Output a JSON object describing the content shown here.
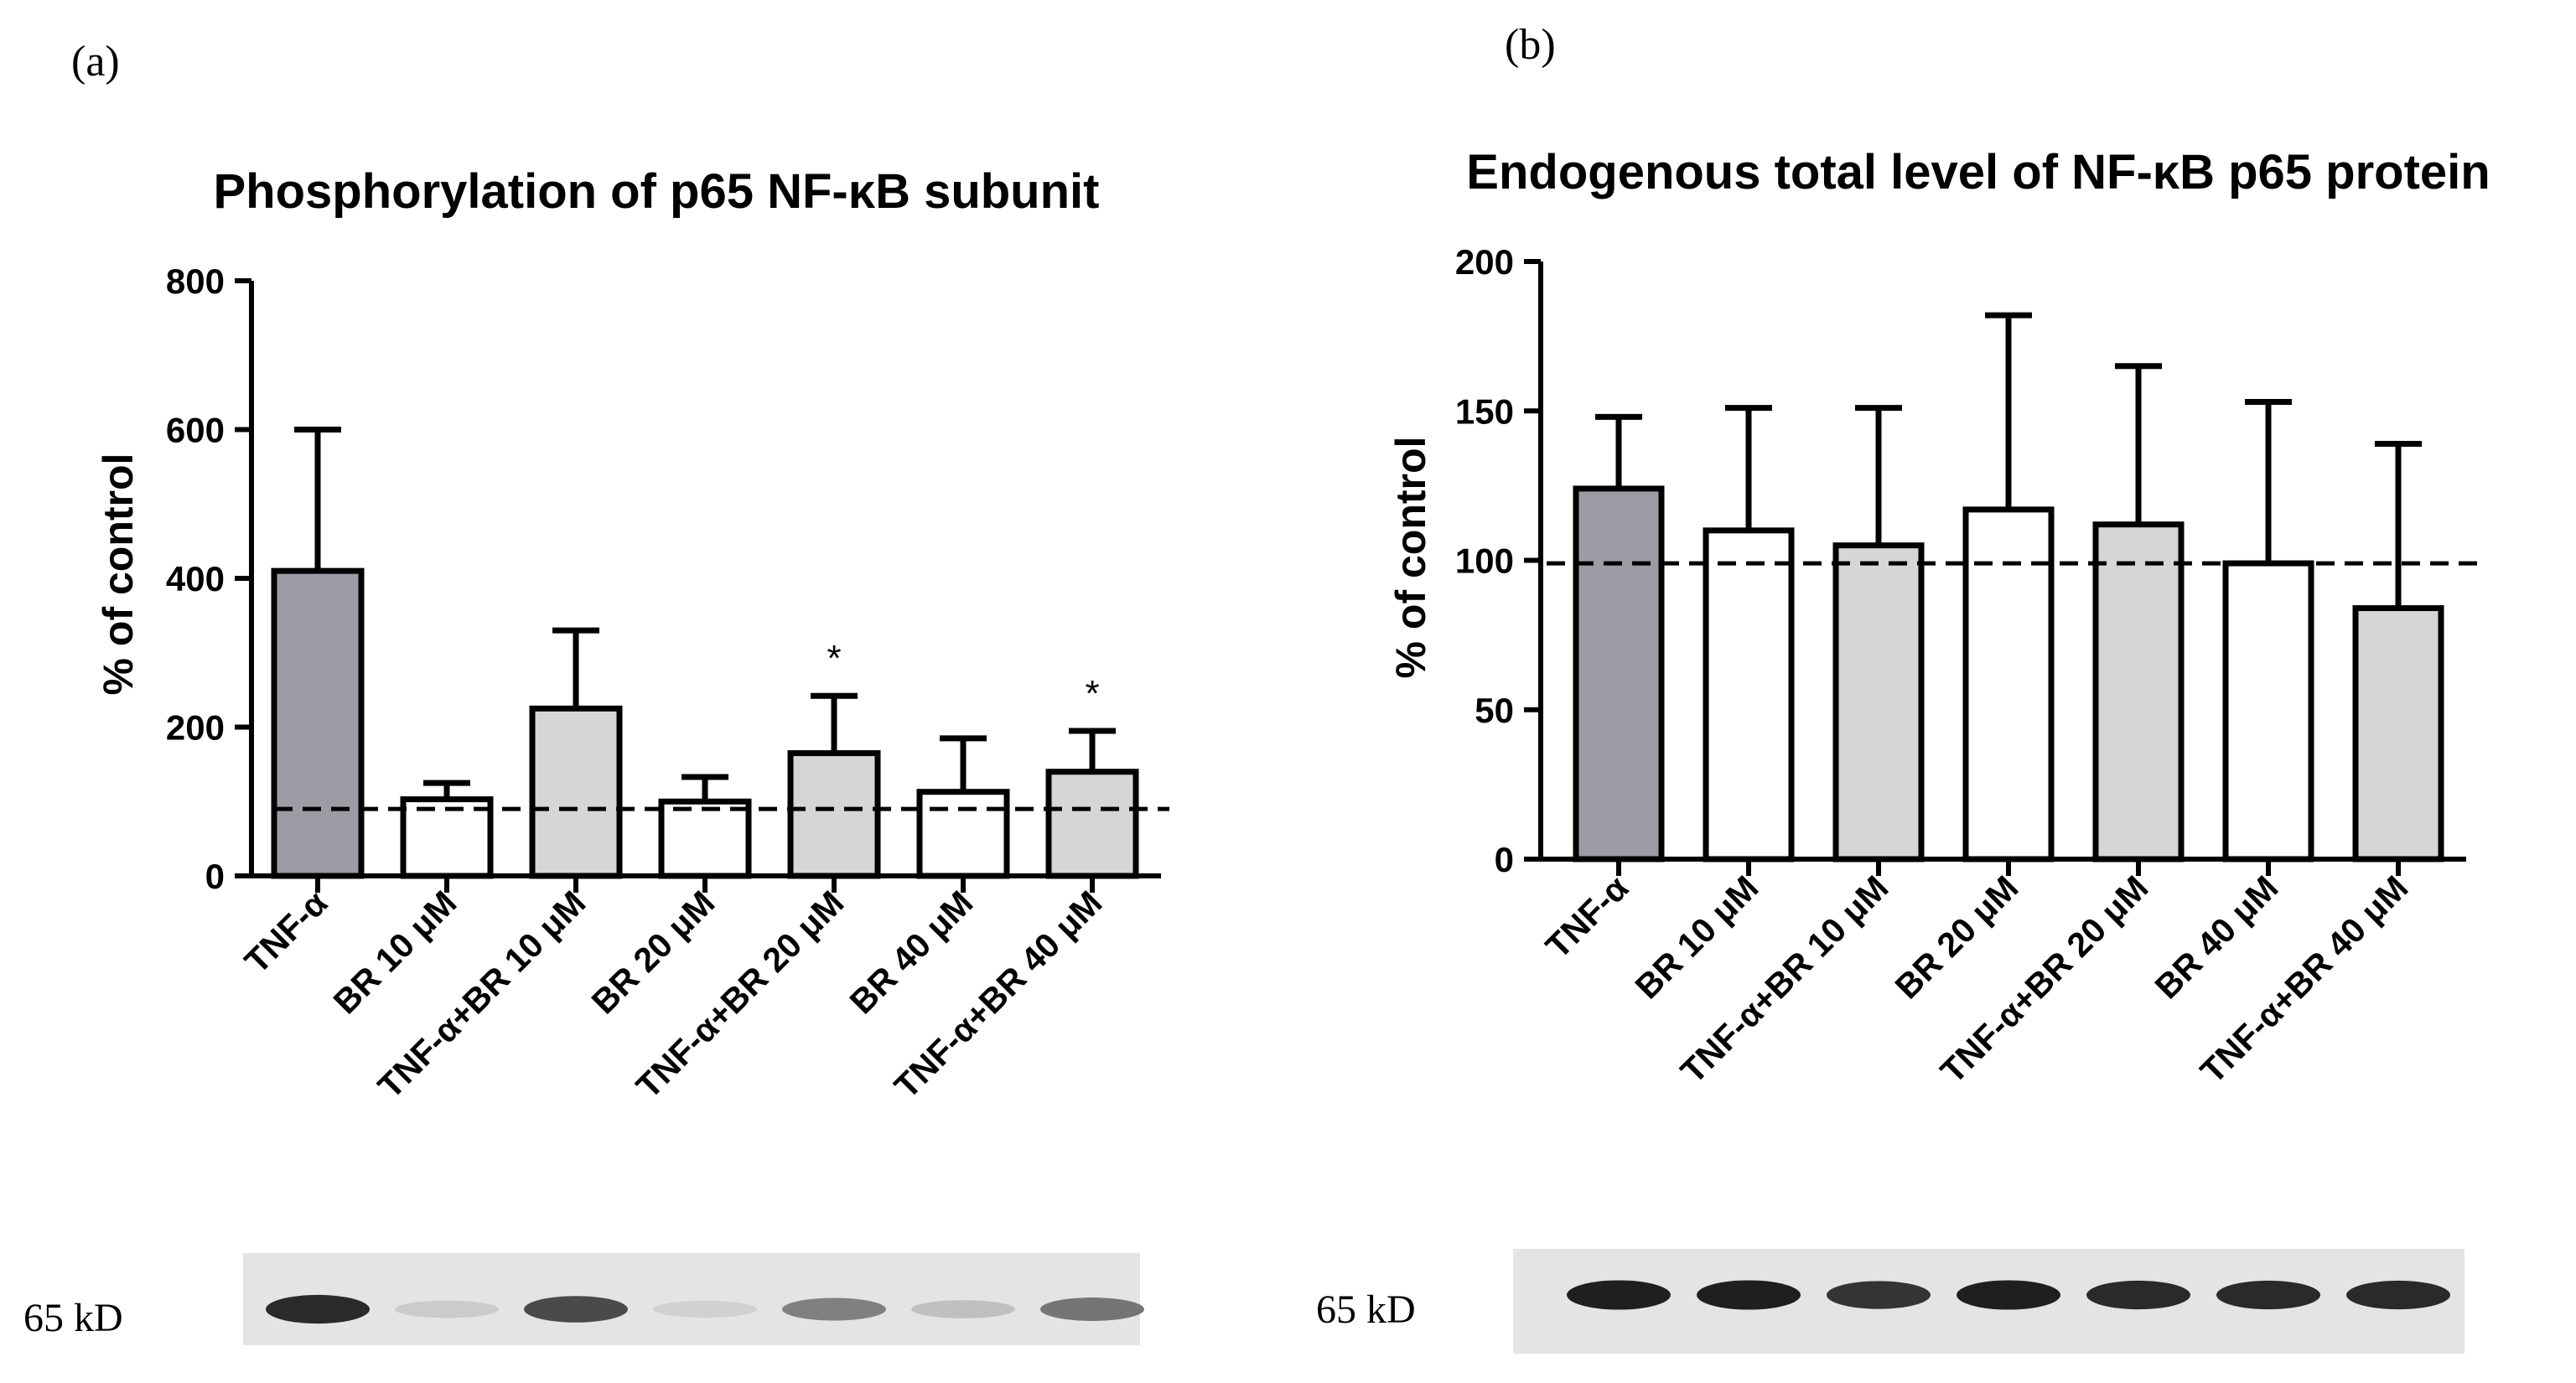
{
  "figure": {
    "panel_a_label": "(a)",
    "panel_b_label": "(b)"
  },
  "chart_data": [
    {
      "type": "bar",
      "panel": "(a)",
      "title": "Phosphorylation of  p65 NF-κB subunit",
      "xlabel": "",
      "ylabel": "% of control",
      "ylim": [
        0,
        800
      ],
      "yticks": [
        0,
        200,
        400,
        600,
        800
      ],
      "categories": [
        "TNF-α",
        "BR 10 μM",
        "TNF-α+BR 10 μM",
        "BR 20 μM",
        "TNF-α+BR 20 μM",
        "BR 40 μM",
        "TNF-α+BR 40 μM"
      ],
      "values": [
        410,
        103,
        225,
        100,
        165,
        113,
        140
      ],
      "errors": [
        190,
        22,
        105,
        33,
        77,
        72,
        55
      ],
      "fills": [
        "#9c9ca4",
        "#ffffff",
        "#d6d6d6",
        "#ffffff",
        "#d6d6d6",
        "#ffffff",
        "#d6d6d6"
      ],
      "significance": [
        "",
        "",
        "",
        "",
        "*",
        "",
        "*"
      ],
      "reference_line": 90,
      "grid": false,
      "blot": {
        "label": "65 kD",
        "band_intensity": [
          0.9,
          0.15,
          0.75,
          0.12,
          0.5,
          0.2,
          0.55
        ]
      }
    },
    {
      "type": "bar",
      "panel": "(b)",
      "title": "Endogenous total level of NF-κB p65 protein",
      "xlabel": "",
      "ylabel": "% of control",
      "ylim": [
        0,
        200
      ],
      "yticks": [
        0,
        50,
        100,
        150,
        200
      ],
      "categories": [
        "TNF-α",
        "BR 10 μM",
        "TNF-α+BR 10 μM",
        "BR 20 μM",
        "TNF-α+BR 20 μM",
        "BR 40 μM",
        "TNF-α+BR 40 μM"
      ],
      "values": [
        124,
        110,
        105,
        117,
        112,
        99,
        84
      ],
      "errors": [
        24,
        41,
        46,
        65,
        53,
        54,
        55
      ],
      "fills": [
        "#9c9ca4",
        "#ffffff",
        "#d6d6d6",
        "#ffffff",
        "#d6d6d6",
        "#ffffff",
        "#d6d6d6"
      ],
      "significance": [
        "",
        "",
        "",
        "",
        "",
        "",
        ""
      ],
      "reference_line": 99,
      "grid": false,
      "blot": {
        "label": "65 kD",
        "band_intensity": [
          0.95,
          0.95,
          0.85,
          0.95,
          0.9,
          0.9,
          0.9
        ]
      }
    }
  ]
}
